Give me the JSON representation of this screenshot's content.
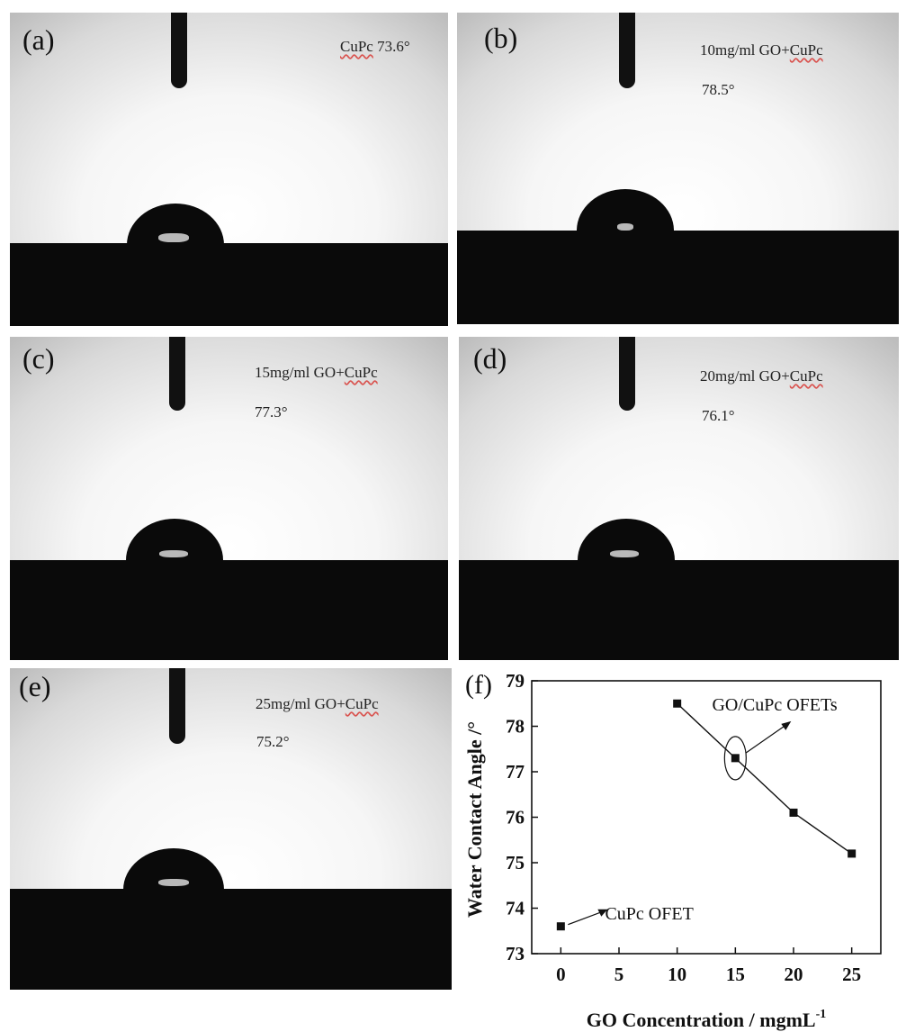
{
  "panels": [
    {
      "id": "a",
      "label": "(a)",
      "sample_name": "",
      "sample_name_wavy": "CuPc",
      "angle": "73.6°"
    },
    {
      "id": "b",
      "label": "(b)",
      "sample_name": "10mg/ml GO+",
      "sample_name_wavy": "CuPc",
      "angle": "78.5°"
    },
    {
      "id": "c",
      "label": "(c)",
      "sample_name": "15mg/ml GO+",
      "sample_name_wavy": "CuPc",
      "angle": "77.3°"
    },
    {
      "id": "d",
      "label": "(d)",
      "sample_name": "20mg/ml GO+",
      "sample_name_wavy": "CuPc",
      "angle": "76.1°"
    },
    {
      "id": "e",
      "label": "(e)",
      "sample_name": "25mg/ml GO+",
      "sample_name_wavy": "CuPc",
      "angle": "75.2°"
    }
  ],
  "chart_panel_label": "(f)",
  "chart_data": {
    "type": "line",
    "xlabel": "GO Concentration / mgmL",
    "xlabel_sup": "-1",
    "ylabel": "Water Contact Angle /°",
    "xlim": [
      -2.5,
      27.5
    ],
    "ylim": [
      73,
      79
    ],
    "xticks": [
      0,
      5,
      10,
      15,
      20,
      25
    ],
    "yticks": [
      73,
      74,
      75,
      76,
      77,
      78,
      79
    ],
    "series": [
      {
        "points": [
          {
            "x": 10,
            "y": 78.5
          },
          {
            "x": 15,
            "y": 77.3
          },
          {
            "x": 20,
            "y": 76.1
          },
          {
            "x": 25,
            "y": 75.2
          }
        ],
        "connected": true
      },
      {
        "points": [
          {
            "x": 0,
            "y": 73.6
          }
        ],
        "connected": false
      }
    ],
    "annotations": [
      {
        "text": "GO/CuPc OFETs",
        "target": {
          "x": 15,
          "y": 77.3
        }
      },
      {
        "text": "CuPc OFET",
        "target": {
          "x": 0,
          "y": 73.6
        }
      }
    ],
    "grid": false
  }
}
